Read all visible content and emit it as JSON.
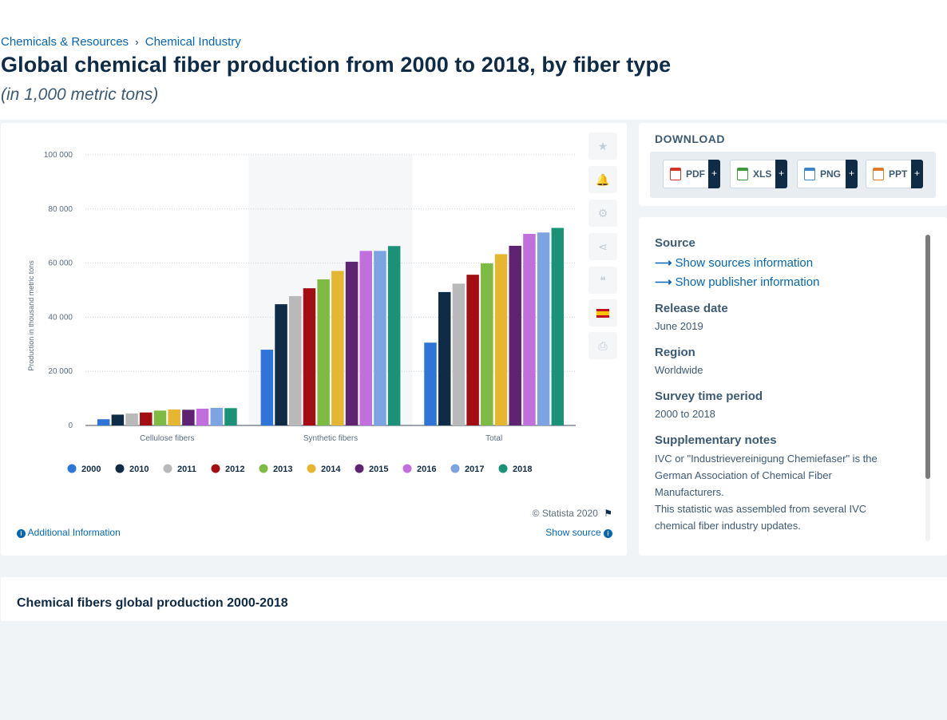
{
  "breadcrumb": [
    {
      "label": "Chemicals & Resources"
    },
    {
      "label": "Chemical Industry"
    }
  ],
  "breadcrumb_separator": "›",
  "title": "Global chemical fiber production from 2000 to 2018, by fiber type",
  "subtitle": "(in 1,000 metric tons)",
  "chart_data": {
    "type": "bar",
    "categories": [
      "Cellulose fibers",
      "Synthetic fibers",
      "Total"
    ],
    "series": [
      {
        "name": "2000",
        "color": "#2f75d8",
        "values": [
          2300,
          28000,
          30600
        ]
      },
      {
        "name": "2010",
        "color": "#0f2b46",
        "values": [
          4000,
          44800,
          49300
        ]
      },
      {
        "name": "2011",
        "color": "#b9b9b9",
        "values": [
          4400,
          47800,
          52400
        ]
      },
      {
        "name": "2012",
        "color": "#a30e15",
        "values": [
          4800,
          50700,
          55700
        ]
      },
      {
        "name": "2013",
        "color": "#7dbb42",
        "values": [
          5500,
          54000,
          59900
        ]
      },
      {
        "name": "2014",
        "color": "#e5b731",
        "values": [
          5900,
          57100,
          63300
        ]
      },
      {
        "name": "2015",
        "color": "#5e2472",
        "values": [
          5800,
          60500,
          66400
        ]
      },
      {
        "name": "2016",
        "color": "#c06fdd",
        "values": [
          6200,
          64500,
          70800
        ]
      },
      {
        "name": "2017",
        "color": "#7ca4e2",
        "values": [
          6500,
          64500,
          71300
        ]
      },
      {
        "name": "2018",
        "color": "#1b9277",
        "values": [
          6400,
          66300,
          73000
        ]
      }
    ],
    "ylabel": "Production in thousand metric tons",
    "ylim": [
      0,
      100000
    ],
    "yticks": [
      "0",
      "20 000",
      "40 000",
      "60 000",
      "80 000",
      "100 000"
    ],
    "ytick_values": [
      0,
      20000,
      40000,
      60000,
      80000,
      100000
    ],
    "grid": true,
    "legend": "bottom",
    "highlight_category": "Synthetic fibers"
  },
  "sidebar_tools": [
    {
      "name": "favorite",
      "icon": "star-icon",
      "glyph": "★"
    },
    {
      "name": "notification",
      "icon": "bell-icon",
      "glyph": "🔔"
    },
    {
      "name": "settings",
      "icon": "gear-icon",
      "glyph": "⚙"
    },
    {
      "name": "share",
      "icon": "share-icon",
      "glyph": "⋖"
    },
    {
      "name": "cite",
      "icon": "quote-icon",
      "glyph": "❝"
    },
    {
      "name": "language",
      "icon": "spain-flag-icon",
      "glyph": ""
    },
    {
      "name": "print",
      "icon": "printer-icon",
      "glyph": "⎙"
    }
  ],
  "copyright": "© Statista 2020",
  "additional_information": "Additional Information",
  "show_source": "Show source",
  "download": {
    "title": "DOWNLOAD",
    "buttons": [
      {
        "label": "PDF",
        "color": "#d0352c"
      },
      {
        "label": "XLS",
        "color": "#3d9a3a"
      },
      {
        "label": "PNG",
        "color": "#3a86c8"
      },
      {
        "label": "PPT",
        "color": "#e07b2a"
      }
    ],
    "plus": "+"
  },
  "info": {
    "source_label": "Source",
    "show_sources": "Show sources information",
    "show_publisher": "Show publisher information",
    "release_date_label": "Release date",
    "release_date": "June 2019",
    "region_label": "Region",
    "region": "Worldwide",
    "survey_period_label": "Survey time period",
    "survey_period": "2000 to 2018",
    "notes_label": "Supplementary notes",
    "notes_1": "IVC or \"Industrievereinigung Chemiefaser\" is the German Association of Chemical Fiber Manufacturers.",
    "notes_2": "This statistic was assembled from several IVC chemical fiber industry updates."
  },
  "related": {
    "title": "Chemical fibers global production 2000-2018"
  }
}
